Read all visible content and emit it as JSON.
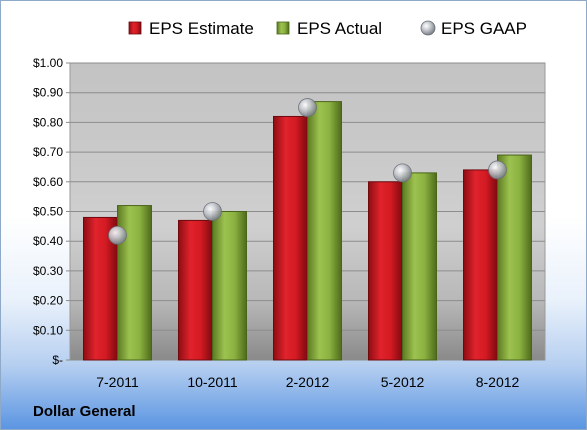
{
  "company": "Dollar General",
  "chart_data": {
    "type": "bar",
    "title": "",
    "xlabel": "",
    "ylabel": "",
    "categories": [
      "7-2011",
      "10-2011",
      "2-2012",
      "5-2012",
      "8-2012"
    ],
    "series": [
      {
        "name": "EPS Estimate",
        "kind": "bar",
        "color": "#c0111b",
        "values": [
          0.48,
          0.47,
          0.82,
          0.6,
          0.64
        ]
      },
      {
        "name": "EPS Actual",
        "kind": "bar",
        "color": "#7ea23a",
        "values": [
          0.52,
          0.5,
          0.87,
          0.63,
          0.69
        ]
      },
      {
        "name": "EPS GAAP",
        "kind": "marker",
        "color": "#b8bcc4",
        "values": [
          0.42,
          0.5,
          0.85,
          0.63,
          0.64
        ]
      }
    ],
    "ylim": [
      0,
      1.0
    ],
    "yticks": [
      {
        "value": 1.0,
        "label": "$1.00"
      },
      {
        "value": 0.9,
        "label": "$0.90"
      },
      {
        "value": 0.8,
        "label": "$0.80"
      },
      {
        "value": 0.7,
        "label": "$0.70"
      },
      {
        "value": 0.6,
        "label": "$0.60"
      },
      {
        "value": 0.5,
        "label": "$0.50"
      },
      {
        "value": 0.4,
        "label": "$0.40"
      },
      {
        "value": 0.3,
        "label": "$0.30"
      },
      {
        "value": 0.2,
        "label": "$0.20"
      },
      {
        "value": 0.1,
        "label": "$0.10"
      },
      {
        "value": 0.0,
        "label": "$-"
      }
    ],
    "grid": true,
    "legend_position": "top"
  }
}
